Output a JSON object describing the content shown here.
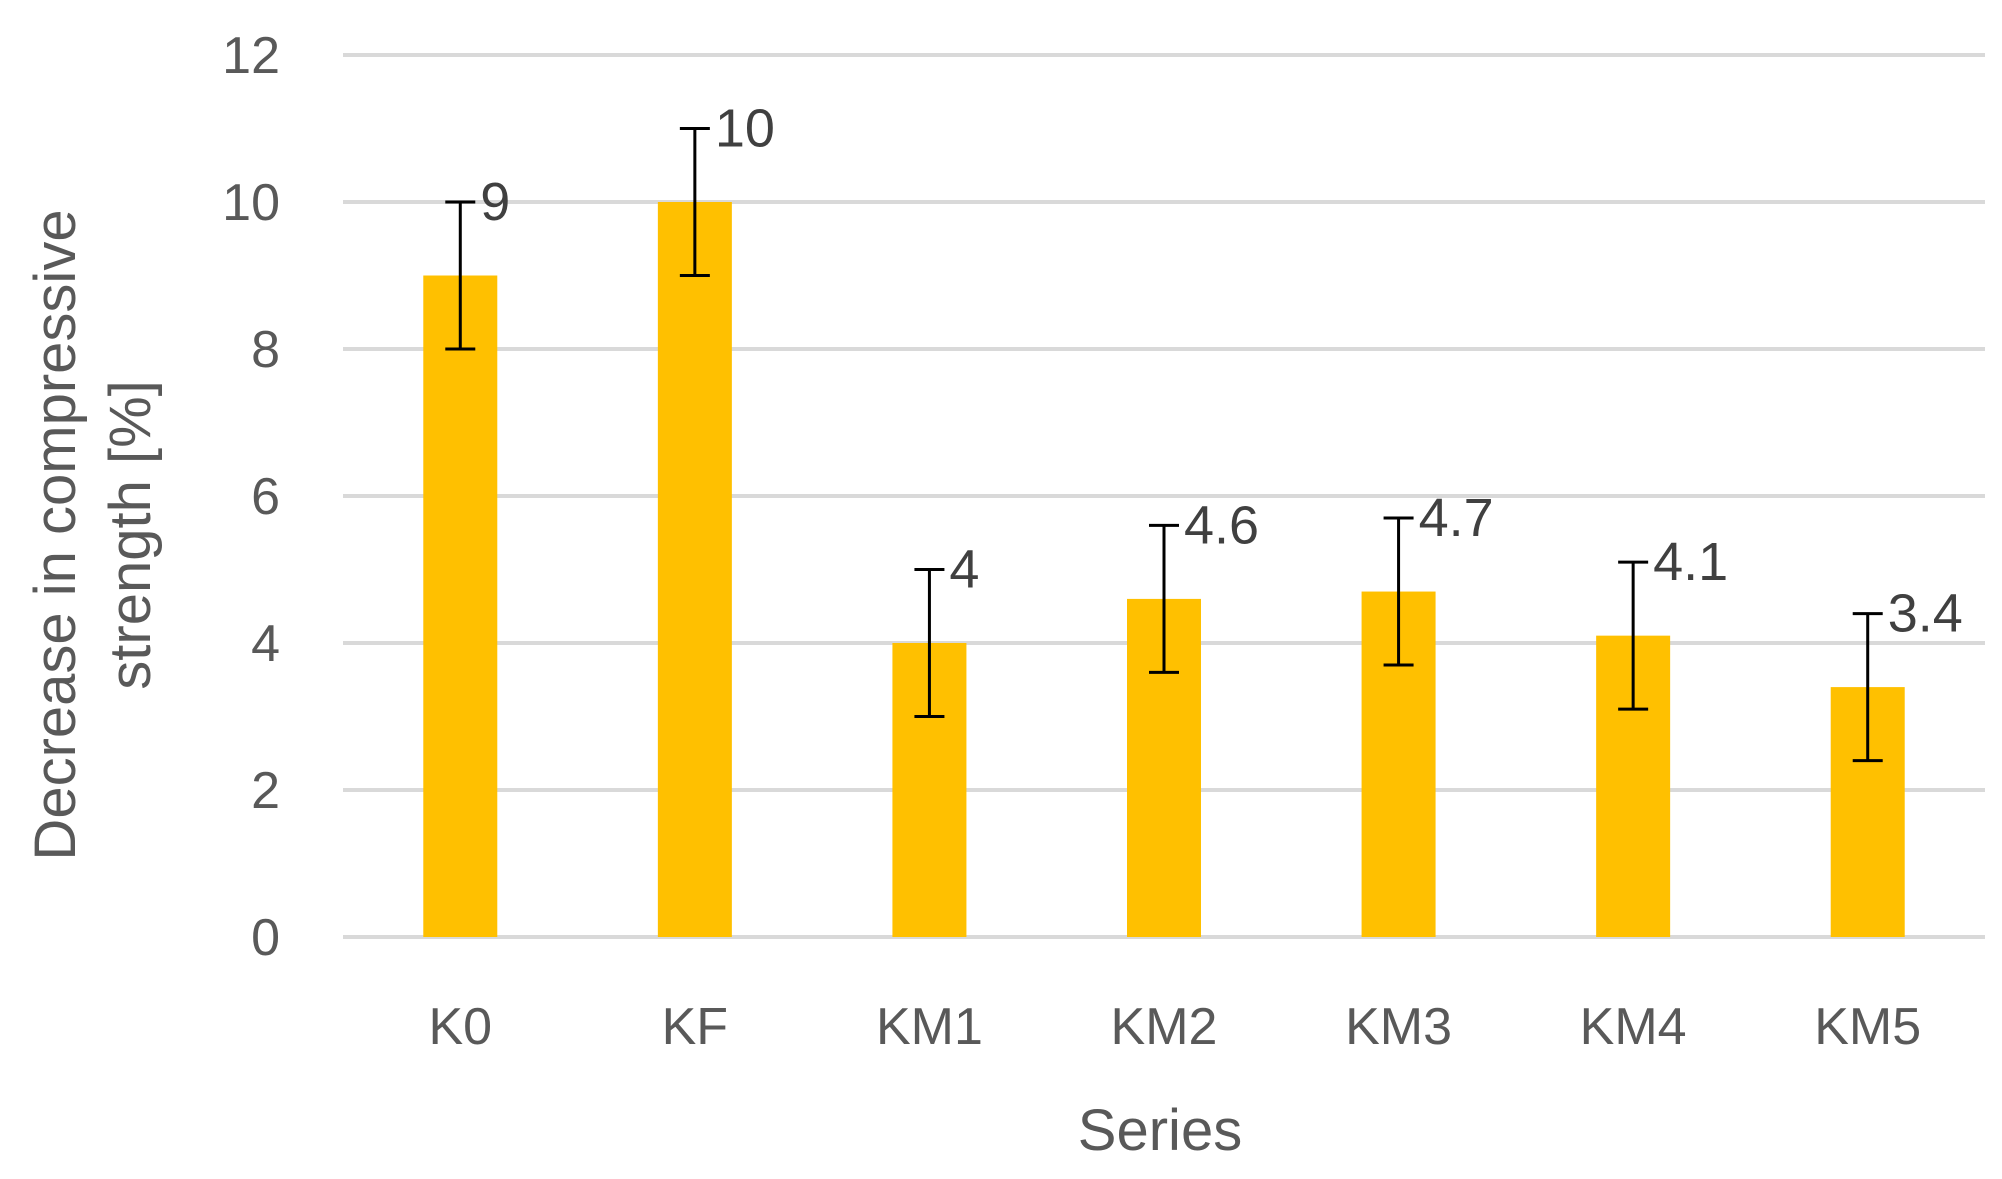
{
  "chart_data": {
    "type": "bar",
    "categories": [
      "K0",
      "KF",
      "KM1",
      "KM2",
      "KM3",
      "KM4",
      "KM5"
    ],
    "values": [
      9,
      10,
      4,
      4.6,
      4.7,
      4.1,
      3.4
    ],
    "data_labels": [
      "9",
      "10",
      "4",
      "4.6",
      "4.7",
      "4.1",
      "3.4"
    ],
    "error": [
      1,
      1,
      1,
      1,
      1,
      1,
      1
    ],
    "xlabel": "Series",
    "ylabel_lines": [
      "Decrease in compressive",
      "strength [%]"
    ],
    "ylim": [
      0,
      12
    ],
    "yticks": [
      0,
      2,
      4,
      6,
      8,
      10,
      12
    ],
    "grid": true,
    "legend": "none",
    "bar_color": "#ffc000",
    "grid_color": "#d9d9d9",
    "text_color": "#595959"
  }
}
